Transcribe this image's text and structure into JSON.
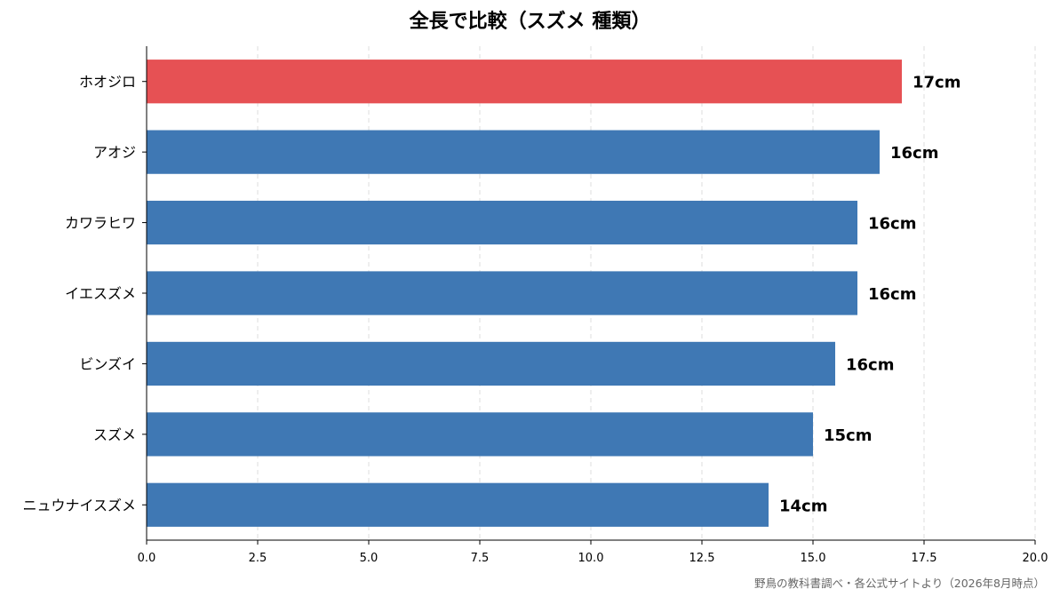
{
  "chart_data": {
    "type": "bar",
    "orientation": "horizontal",
    "title": "全長で比較（スズメ 種類）",
    "categories": [
      "ホオジロ",
      "アオジ",
      "カワラヒワ",
      "イエスズメ",
      "ビンズイ",
      "スズメ",
      "ニュウナイスズメ"
    ],
    "values": [
      17,
      16.5,
      16,
      16,
      15.5,
      15,
      14
    ],
    "value_labels": [
      "17cm",
      "16cm",
      "16cm",
      "16cm",
      "16cm",
      "15cm",
      "14cm"
    ],
    "highlight_index": 0,
    "xlim": [
      0,
      20
    ],
    "xticks": [
      "0.0",
      "2.5",
      "5.0",
      "7.5",
      "10.0",
      "12.5",
      "15.0",
      "17.5",
      "20.0"
    ],
    "xlabel": "",
    "ylabel": "",
    "grid": "vertical dashed",
    "colors": {
      "bar": "#3f78b4",
      "highlight": "#e65154"
    }
  },
  "source_note": "野鳥の教科書調べ・各公式サイトより（2026年8月時点）"
}
